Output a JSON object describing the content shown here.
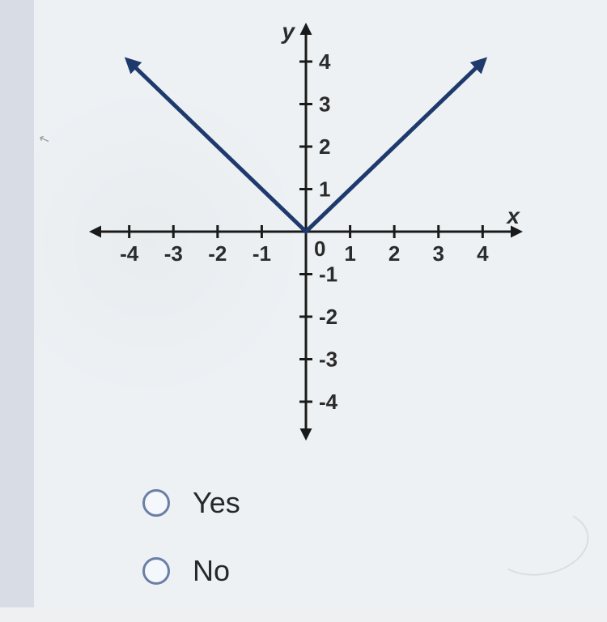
{
  "chart": {
    "type": "line",
    "axis_labels": {
      "x": "x",
      "y": "y"
    },
    "xlim": [
      -4.8,
      4.8
    ],
    "ylim": [
      -4.8,
      4.8
    ],
    "xticks": {
      "pos": [
        -4,
        -3,
        -2,
        -1,
        1,
        2,
        3,
        4
      ],
      "labels": [
        "-4",
        "-3",
        "-2",
        "-1",
        "1",
        "2",
        "3",
        "4"
      ]
    },
    "yticks": {
      "pos": [
        -4,
        -3,
        -2,
        -1,
        1,
        2,
        3,
        4
      ],
      "labels": [
        "-4",
        "-3",
        "-2",
        "-1",
        "1",
        "2",
        "3",
        "4"
      ]
    },
    "origin_label": "0",
    "series": [
      {
        "points": [
          [
            -4,
            4
          ],
          [
            0,
            0
          ]
        ],
        "has_start_arrow": true
      },
      {
        "points": [
          [
            0,
            0
          ],
          [
            4,
            4
          ]
        ],
        "has_end_arrow": true
      }
    ],
    "line_color": "#1e3a6d",
    "line_width": 5,
    "axis_color": "#1a1a1a",
    "axis_width": 3,
    "tick_len": 8,
    "tick_fontsize": 26,
    "axis_label_fontsize": 28,
    "background_color": "#edf1f4"
  },
  "options": {
    "yes": "Yes",
    "no": "No"
  }
}
